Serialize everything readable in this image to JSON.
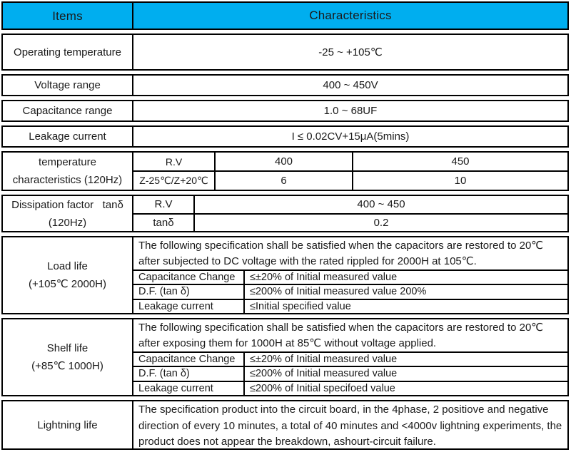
{
  "colors": {
    "header_bg": "#00AEEF",
    "border": "#000000",
    "background": "#FFFFFF",
    "text": "#1A1A1A"
  },
  "header": {
    "items": "Items",
    "characteristics": "Characteristics"
  },
  "simple_rows": [
    {
      "item": "Operating temperature",
      "value": "-25 ~ +105℃"
    },
    {
      "item": "Voltage range",
      "value": "400 ~ 450V"
    },
    {
      "item": "Capacitance range",
      "value": "1.0 ~ 68UF"
    },
    {
      "item": "Leakage current",
      "value": "I ≤ 0.02CV+15μA(5mins)"
    }
  ],
  "temp_char": {
    "item": "temperature\ncharacteristics (120Hz)",
    "rows": [
      {
        "label": "R.V",
        "col1": "400",
        "col2": "450"
      },
      {
        "label": "Z-25℃/Z+20℃",
        "col1": "6",
        "col2": "10"
      }
    ]
  },
  "dissipation": {
    "item": "Dissipation factor   tanδ\n(120Hz)",
    "rows": [
      {
        "label": "R.V",
        "value": "400 ~ 450"
      },
      {
        "label": "tanδ",
        "value": "0.2"
      }
    ]
  },
  "load_life": {
    "item": "Load life\n(+105℃ 2000H)",
    "description": "The following specification shall be satisfied when the capacitors are restored to 20℃ after subjected to DC voltage with the rated rippled for 2000H at 105℃.",
    "rows": [
      {
        "label": "Capacitance Change",
        "value": "≤±20% of Initial measured value"
      },
      {
        "label": "D.F. (tan δ)",
        "value": "≤200% of Initial measured value 200%"
      },
      {
        "label": "Leakage current",
        "value": "≤Initial specified value"
      }
    ]
  },
  "shelf_life": {
    "item": "Shelf life\n(+85℃ 1000H)",
    "description": "The following specification shall be satisfied when the capacitors are restored to 20℃ after exposing them for 1000H at 85℃ without voltage applied.",
    "rows": [
      {
        "label": "Capacitance Change",
        "value": "≤±20% of Initial measured value"
      },
      {
        "label": "D.F. (tan δ)",
        "value": "≤200% of Initial measured value"
      },
      {
        "label": "Leakage current",
        "value": "≤200% of Initial specifoed value"
      }
    ]
  },
  "lightning": {
    "item": "Lightning life",
    "description": "The specification product into the circuit board, in the 4phase, 2 positiove and negative direction of every 10 minutes, a total of 40 minutes and <4000v lightning experiments, the product does not appear the breakdown, ashourt-circuit failure."
  }
}
